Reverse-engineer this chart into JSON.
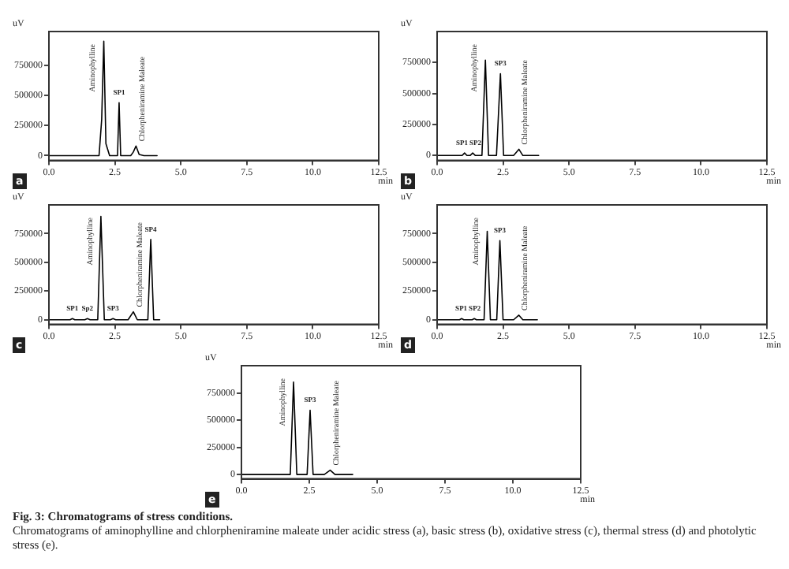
{
  "chart_data": [
    {
      "type": "line",
      "xlabel": "min",
      "ylabel": "uV",
      "xlim": [
        0,
        12.5
      ],
      "ylim": [
        -40000,
        1030000
      ],
      "xticks": [
        {
          "value": 0,
          "label": "0.0"
        },
        2.5,
        {
          "value": 5,
          "label": "5.0"
        },
        7.5,
        {
          "value": 10,
          "label": "10.0"
        },
        12.5
      ],
      "yticks": [
        0,
        250000,
        500000,
        750000
      ],
      "grid": false,
      "legend": false,
      "marker": "none",
      "series": [
        {
          "color": "#000000",
          "x": [
            0,
            1.9,
            2.0,
            2.08,
            2.16,
            2.3,
            2.6,
            2.66,
            2.72,
            3.1,
            3.2,
            3.3,
            3.42,
            3.6,
            4.1
          ],
          "values": [
            0,
            0,
            300000,
            950000,
            100000,
            0,
            0,
            440000,
            0,
            0,
            30000,
            80000,
            10000,
            0,
            0
          ]
        }
      ],
      "annotations": [
        "a",
        {
          "text": "Aminophylline",
          "x": 2.08,
          "y": 950000
        },
        {
          "text": "SP1",
          "x": 2.66,
          "y": 440000
        },
        {
          "text": "Chlorpheniramine Maleate",
          "x": 3.3,
          "y": 80000
        }
      ]
    },
    {
      "type": "line",
      "xlabel": "min",
      "ylabel": "uV",
      "xlim": [
        0,
        12.5
      ],
      "ylim": [
        -40000,
        1000000
      ],
      "xticks": [
        {
          "value": 0,
          "label": "0.0"
        },
        2.5,
        {
          "value": 5,
          "label": "5.0"
        },
        7.5,
        {
          "value": 10,
          "label": "10.0"
        },
        12.5
      ],
      "yticks": [
        0,
        250000,
        500000,
        750000
      ],
      "grid": false,
      "legend": false,
      "marker": "none",
      "series": [
        {
          "color": "#000000",
          "x": [
            0,
            0.95,
            1.04,
            1.13,
            1.25,
            1.35,
            1.45,
            1.7,
            1.83,
            1.95,
            2.25,
            2.4,
            2.52,
            2.9,
            3.1,
            3.25,
            3.85
          ],
          "values": [
            0,
            0,
            20000,
            0,
            0,
            20000,
            0,
            0,
            770000,
            0,
            0,
            660000,
            0,
            0,
            50000,
            0,
            0
          ]
        }
      ],
      "annotations": [
        "b",
        {
          "text": "SP1",
          "x": 1.04,
          "y": 20000
        },
        {
          "text": "SP2",
          "x": 1.35,
          "y": 20000
        },
        {
          "text": "Aminophylline",
          "x": 1.83,
          "y": 770000
        },
        {
          "text": "SP3",
          "x": 2.4,
          "y": 660000
        },
        {
          "text": "Chlorpheniramine Maleate",
          "x": 3.1,
          "y": 50000
        }
      ]
    },
    {
      "type": "line",
      "xlabel": "min",
      "ylabel": "uV",
      "xlim": [
        0,
        12.5
      ],
      "ylim": [
        -40000,
        1000000
      ],
      "xticks": [
        {
          "value": 0,
          "label": "0.0"
        },
        2.5,
        {
          "value": 5,
          "label": "5.0"
        },
        7.5,
        {
          "value": 10,
          "label": "10.0"
        },
        12.5
      ],
      "yticks": [
        0,
        250000,
        500000,
        750000
      ],
      "grid": false,
      "legend": false,
      "marker": "none",
      "series": [
        {
          "color": "#000000",
          "x": [
            0,
            0.8,
            0.89,
            0.98,
            1.36,
            1.46,
            1.56,
            1.85,
            1.97,
            2.1,
            2.33,
            2.43,
            2.53,
            3.0,
            3.2,
            3.35,
            3.75,
            3.86,
            3.97,
            4.2
          ],
          "values": [
            0,
            0,
            10000,
            0,
            0,
            10000,
            0,
            0,
            900000,
            0,
            0,
            10000,
            0,
            0,
            70000,
            0,
            0,
            700000,
            0,
            0
          ]
        }
      ],
      "annotations": [
        "c",
        {
          "text": "SP1",
          "x": 0.89,
          "y": 10000
        },
        {
          "text": "Sp2",
          "x": 1.46,
          "y": 10000
        },
        {
          "text": "Aminophylline",
          "x": 1.97,
          "y": 900000
        },
        {
          "text": "SP3",
          "x": 2.43,
          "y": 10000
        },
        {
          "text": "Chlorpheniramine Maleate",
          "x": 3.2,
          "y": 70000
        },
        {
          "text": "SP4",
          "x": 3.86,
          "y": 700000
        }
      ]
    },
    {
      "type": "line",
      "xlabel": "min",
      "ylabel": "uV",
      "xlim": [
        0,
        12.5
      ],
      "ylim": [
        -40000,
        1000000
      ],
      "xticks": [
        {
          "value": 0,
          "label": "0.0"
        },
        2.5,
        {
          "value": 5,
          "label": "5.0"
        },
        7.5,
        {
          "value": 10,
          "label": "10.0"
        },
        12.5
      ],
      "yticks": [
        0,
        250000,
        500000,
        750000
      ],
      "grid": false,
      "legend": false,
      "marker": "none",
      "series": [
        {
          "color": "#000000",
          "x": [
            0,
            0.85,
            0.93,
            1.01,
            1.33,
            1.41,
            1.49,
            1.78,
            1.9,
            2.02,
            2.26,
            2.38,
            2.5,
            2.9,
            3.1,
            3.25,
            3.8
          ],
          "values": [
            0,
            0,
            10000,
            0,
            0,
            10000,
            0,
            0,
            770000,
            0,
            0,
            690000,
            0,
            0,
            40000,
            0,
            0
          ]
        }
      ],
      "annotations": [
        "d",
        {
          "text": "SP1",
          "x": 0.93,
          "y": 10000
        },
        {
          "text": "SP2",
          "x": 1.41,
          "y": 10000
        },
        {
          "text": "Aminophylline",
          "x": 1.9,
          "y": 770000
        },
        {
          "text": "SP3",
          "x": 2.38,
          "y": 690000
        },
        {
          "text": "Chlorpheniramine Maleate",
          "x": 3.1,
          "y": 40000
        }
      ]
    },
    {
      "type": "line",
      "xlabel": "min",
      "ylabel": "uV",
      "xlim": [
        0,
        12.5
      ],
      "ylim": [
        -40000,
        1000000
      ],
      "xticks": [
        {
          "value": 0,
          "label": "0.0"
        },
        2.5,
        {
          "value": 5,
          "label": "5.0"
        },
        7.5,
        {
          "value": 10,
          "label": "10.0"
        },
        12.5
      ],
      "yticks": [
        0,
        250000,
        500000,
        750000
      ],
      "grid": false,
      "legend": false,
      "marker": "none",
      "series": [
        {
          "color": "#000000",
          "x": [
            0,
            1.8,
            1.92,
            2.04,
            2.42,
            2.53,
            2.64,
            3.05,
            3.27,
            3.45,
            4.1
          ],
          "values": [
            0,
            0,
            850000,
            0,
            0,
            590000,
            0,
            0,
            40000,
            0,
            0
          ]
        }
      ],
      "annotations": [
        "e",
        {
          "text": "Aminophylline",
          "x": 1.92,
          "y": 850000
        },
        {
          "text": "SP3",
          "x": 2.53,
          "y": 590000
        },
        {
          "text": "Chlorpheniramine Maleate",
          "x": 3.27,
          "y": 40000
        },
        "Fig. 3: Chromatograms of stress conditions.",
        "Chromatograms of aminophylline and chlorpheniramine maleate under acidic stress (a), basic stress (b), oxidative stress (c), thermal stress (d) and photolytic stress (e)."
      ]
    }
  ]
}
